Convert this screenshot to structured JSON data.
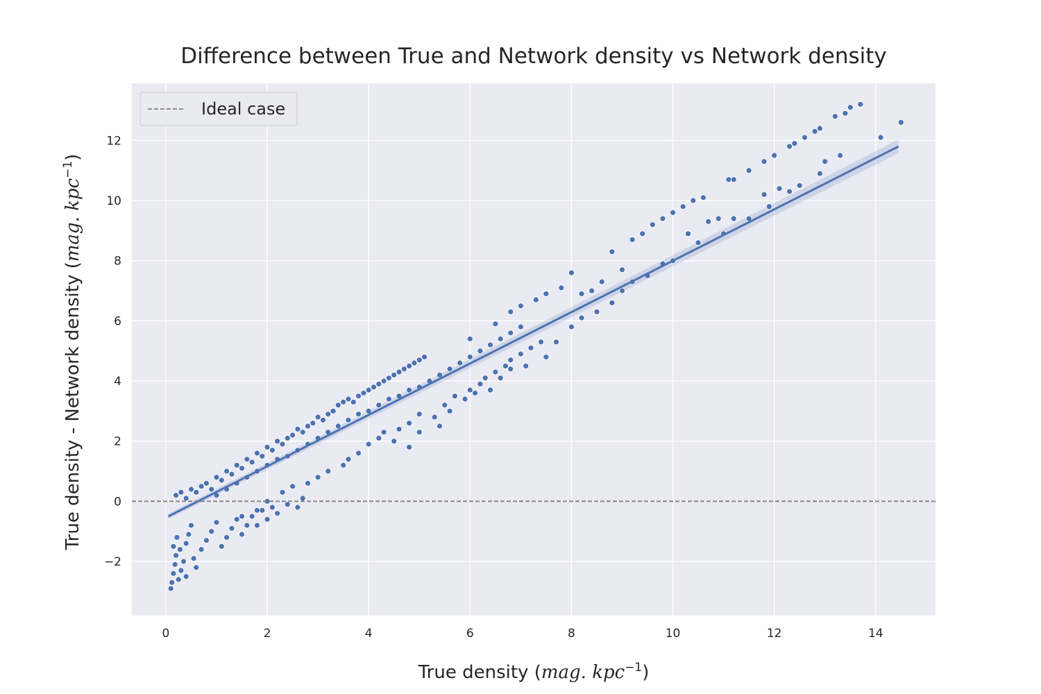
{
  "chart_data": {
    "type": "scatter",
    "title": "Difference between True and Network density vs Network density",
    "xlabel": {
      "text": "True density ",
      "unit_open": "(",
      "unit_math": "mag. kpc",
      "unit_sup": "−1",
      "unit_close": ")"
    },
    "ylabel": {
      "text": "True density - Network density ",
      "unit_open": "(",
      "unit_math": "mag. kpc",
      "unit_sup": "−1",
      "unit_close": ")"
    },
    "xlim": [
      -0.67,
      15.18
    ],
    "ylim": [
      -3.8,
      13.9
    ],
    "x_ticks": [
      0,
      2,
      4,
      6,
      8,
      10,
      12,
      14
    ],
    "y_ticks": [
      -2,
      0,
      2,
      4,
      6,
      8,
      10,
      12
    ],
    "y_tick_labels": [
      "−2",
      "0",
      "2",
      "4",
      "6",
      "8",
      "10",
      "12"
    ],
    "grid": true,
    "legend": {
      "position": "top-left",
      "entries": [
        {
          "label": "Ideal case",
          "style": "dashed",
          "color": "#808080"
        }
      ]
    },
    "colors": {
      "points": "#4c72b0",
      "regression": "#4c72b0",
      "ideal": "#808080",
      "background": "#eaeaf2",
      "grid": "#ffffff"
    },
    "series": [
      {
        "kind": "scatter",
        "points": [
          [
            0.1,
            -2.9
          ],
          [
            0.12,
            -2.7
          ],
          [
            0.15,
            -2.4
          ],
          [
            0.18,
            -2.1
          ],
          [
            0.2,
            -1.8
          ],
          [
            0.15,
            -1.5
          ],
          [
            0.22,
            -1.2
          ],
          [
            0.25,
            -2.6
          ],
          [
            0.3,
            -2.3
          ],
          [
            0.35,
            -2.0
          ],
          [
            0.28,
            -1.6
          ],
          [
            0.4,
            -1.4
          ],
          [
            0.45,
            -1.1
          ],
          [
            0.5,
            -0.8
          ],
          [
            0.4,
            -2.5
          ],
          [
            0.6,
            -2.2
          ],
          [
            0.55,
            -1.9
          ],
          [
            0.7,
            -1.6
          ],
          [
            0.8,
            -1.3
          ],
          [
            0.9,
            -1.0
          ],
          [
            1.0,
            -0.7
          ],
          [
            1.1,
            -1.5
          ],
          [
            1.2,
            -1.2
          ],
          [
            1.3,
            -0.9
          ],
          [
            1.4,
            -0.6
          ],
          [
            1.5,
            -1.1
          ],
          [
            1.6,
            -0.8
          ],
          [
            1.7,
            -0.5
          ],
          [
            1.8,
            -0.8
          ],
          [
            1.9,
            -0.3
          ],
          [
            2.0,
            -0.6
          ],
          [
            2.1,
            -0.2
          ],
          [
            2.2,
            -0.4
          ],
          [
            2.4,
            -0.1
          ],
          [
            2.6,
            -0.2
          ],
          [
            2.7,
            0.1
          ],
          [
            0.2,
            0.2
          ],
          [
            0.3,
            0.3
          ],
          [
            0.4,
            0.1
          ],
          [
            0.5,
            0.4
          ],
          [
            0.6,
            0.3
          ],
          [
            0.7,
            0.5
          ],
          [
            0.8,
            0.6
          ],
          [
            0.9,
            0.4
          ],
          [
            1.0,
            0.8
          ],
          [
            1.1,
            0.7
          ],
          [
            1.2,
            1.0
          ],
          [
            1.3,
            0.9
          ],
          [
            1.4,
            1.2
          ],
          [
            1.5,
            1.1
          ],
          [
            1.6,
            1.4
          ],
          [
            1.7,
            1.3
          ],
          [
            1.8,
            1.6
          ],
          [
            1.9,
            1.5
          ],
          [
            2.0,
            1.8
          ],
          [
            2.1,
            1.7
          ],
          [
            2.2,
            2.0
          ],
          [
            2.3,
            1.9
          ],
          [
            2.4,
            2.1
          ],
          [
            2.5,
            2.2
          ],
          [
            2.6,
            2.4
          ],
          [
            2.7,
            2.3
          ],
          [
            2.8,
            2.5
          ],
          [
            2.9,
            2.6
          ],
          [
            3.0,
            2.8
          ],
          [
            3.1,
            2.7
          ],
          [
            3.2,
            2.9
          ],
          [
            3.3,
            3.0
          ],
          [
            3.4,
            3.2
          ],
          [
            3.5,
            3.3
          ],
          [
            3.6,
            3.4
          ],
          [
            3.7,
            3.3
          ],
          [
            3.8,
            3.5
          ],
          [
            3.9,
            3.6
          ],
          [
            4.0,
            3.7
          ],
          [
            4.1,
            3.8
          ],
          [
            4.2,
            3.9
          ],
          [
            4.3,
            4.0
          ],
          [
            4.4,
            4.1
          ],
          [
            4.5,
            4.2
          ],
          [
            4.6,
            4.3
          ],
          [
            4.7,
            4.4
          ],
          [
            4.8,
            4.5
          ],
          [
            4.9,
            4.6
          ],
          [
            5.0,
            4.7
          ],
          [
            5.1,
            4.8
          ],
          [
            1.0,
            0.2
          ],
          [
            1.2,
            0.4
          ],
          [
            1.4,
            0.6
          ],
          [
            1.6,
            0.8
          ],
          [
            1.8,
            1.0
          ],
          [
            2.0,
            1.2
          ],
          [
            2.2,
            1.4
          ],
          [
            2.4,
            1.5
          ],
          [
            2.6,
            1.7
          ],
          [
            2.8,
            1.9
          ],
          [
            3.0,
            2.1
          ],
          [
            3.2,
            2.3
          ],
          [
            3.4,
            2.5
          ],
          [
            3.6,
            2.7
          ],
          [
            3.8,
            2.9
          ],
          [
            4.0,
            3.0
          ],
          [
            4.2,
            3.2
          ],
          [
            4.4,
            3.4
          ],
          [
            4.6,
            3.5
          ],
          [
            4.8,
            3.7
          ],
          [
            5.0,
            3.8
          ],
          [
            5.2,
            4.0
          ],
          [
            5.4,
            4.2
          ],
          [
            5.6,
            4.4
          ],
          [
            5.8,
            4.6
          ],
          [
            6.0,
            4.8
          ],
          [
            6.2,
            5.0
          ],
          [
            6.4,
            5.2
          ],
          [
            6.6,
            5.4
          ],
          [
            6.8,
            5.6
          ],
          [
            7.0,
            5.8
          ],
          [
            1.5,
            -0.5
          ],
          [
            1.8,
            -0.3
          ],
          [
            2.0,
            0.0
          ],
          [
            2.3,
            0.3
          ],
          [
            2.5,
            0.5
          ],
          [
            2.8,
            0.6
          ],
          [
            3.0,
            0.8
          ],
          [
            3.2,
            1.0
          ],
          [
            3.5,
            1.2
          ],
          [
            3.6,
            1.4
          ],
          [
            3.8,
            1.6
          ],
          [
            4.0,
            1.9
          ],
          [
            4.2,
            2.1
          ],
          [
            4.3,
            2.3
          ],
          [
            4.5,
            2.0
          ],
          [
            4.6,
            2.4
          ],
          [
            4.8,
            2.6
          ],
          [
            5.0,
            2.9
          ],
          [
            5.3,
            2.8
          ],
          [
            5.5,
            3.2
          ],
          [
            5.7,
            3.5
          ],
          [
            6.0,
            3.7
          ],
          [
            6.2,
            3.9
          ],
          [
            6.3,
            4.1
          ],
          [
            6.5,
            4.3
          ],
          [
            6.7,
            4.5
          ],
          [
            6.8,
            4.7
          ],
          [
            7.0,
            4.9
          ],
          [
            7.2,
            5.1
          ],
          [
            7.4,
            5.3
          ],
          [
            4.8,
            1.8
          ],
          [
            5.0,
            2.3
          ],
          [
            5.4,
            2.5
          ],
          [
            5.6,
            3.0
          ],
          [
            5.9,
            3.4
          ],
          [
            6.1,
            3.6
          ],
          [
            6.4,
            3.7
          ],
          [
            6.6,
            4.1
          ],
          [
            6.8,
            4.4
          ],
          [
            7.1,
            4.5
          ],
          [
            7.5,
            4.8
          ],
          [
            7.7,
            5.3
          ],
          [
            8.0,
            5.8
          ],
          [
            8.2,
            6.1
          ],
          [
            8.5,
            6.3
          ],
          [
            8.8,
            6.6
          ],
          [
            9.0,
            7.0
          ],
          [
            9.2,
            7.3
          ],
          [
            9.5,
            7.5
          ],
          [
            9.8,
            7.9
          ],
          [
            10.0,
            8.0
          ],
          [
            6.0,
            5.4
          ],
          [
            6.5,
            5.9
          ],
          [
            6.8,
            6.3
          ],
          [
            7.0,
            6.5
          ],
          [
            7.3,
            6.7
          ],
          [
            7.5,
            6.9
          ],
          [
            7.8,
            7.1
          ],
          [
            8.0,
            7.6
          ],
          [
            8.2,
            6.9
          ],
          [
            8.4,
            7.0
          ],
          [
            8.6,
            7.3
          ],
          [
            8.8,
            8.3
          ],
          [
            9.0,
            7.7
          ],
          [
            9.2,
            8.7
          ],
          [
            9.4,
            8.9
          ],
          [
            9.6,
            9.2
          ],
          [
            9.8,
            9.4
          ],
          [
            10.0,
            9.6
          ],
          [
            10.2,
            9.8
          ],
          [
            10.4,
            10.0
          ],
          [
            10.6,
            10.1
          ],
          [
            10.3,
            8.9
          ],
          [
            10.5,
            8.6
          ],
          [
            10.7,
            9.3
          ],
          [
            10.9,
            9.4
          ],
          [
            11.0,
            8.9
          ],
          [
            11.2,
            9.4
          ],
          [
            11.5,
            9.4
          ],
          [
            11.8,
            10.2
          ],
          [
            11.9,
            9.8
          ],
          [
            12.1,
            10.4
          ],
          [
            12.3,
            10.3
          ],
          [
            12.5,
            10.5
          ],
          [
            12.9,
            10.9
          ],
          [
            13.0,
            11.3
          ],
          [
            13.3,
            11.5
          ],
          [
            11.1,
            10.7
          ],
          [
            11.2,
            10.7
          ],
          [
            11.5,
            11.0
          ],
          [
            11.8,
            11.3
          ],
          [
            12.0,
            11.5
          ],
          [
            12.3,
            11.8
          ],
          [
            12.4,
            11.9
          ],
          [
            12.6,
            12.1
          ],
          [
            12.8,
            12.3
          ],
          [
            12.9,
            12.4
          ],
          [
            13.2,
            12.8
          ],
          [
            13.4,
            12.9
          ],
          [
            13.5,
            13.1
          ],
          [
            13.7,
            13.2
          ],
          [
            14.1,
            12.1
          ],
          [
            14.5,
            12.6
          ]
        ]
      },
      {
        "kind": "regression",
        "x": [
          0.05,
          14.45
        ],
        "y": [
          -0.5,
          11.8
        ]
      },
      {
        "kind": "ideal",
        "y": 0
      }
    ]
  }
}
